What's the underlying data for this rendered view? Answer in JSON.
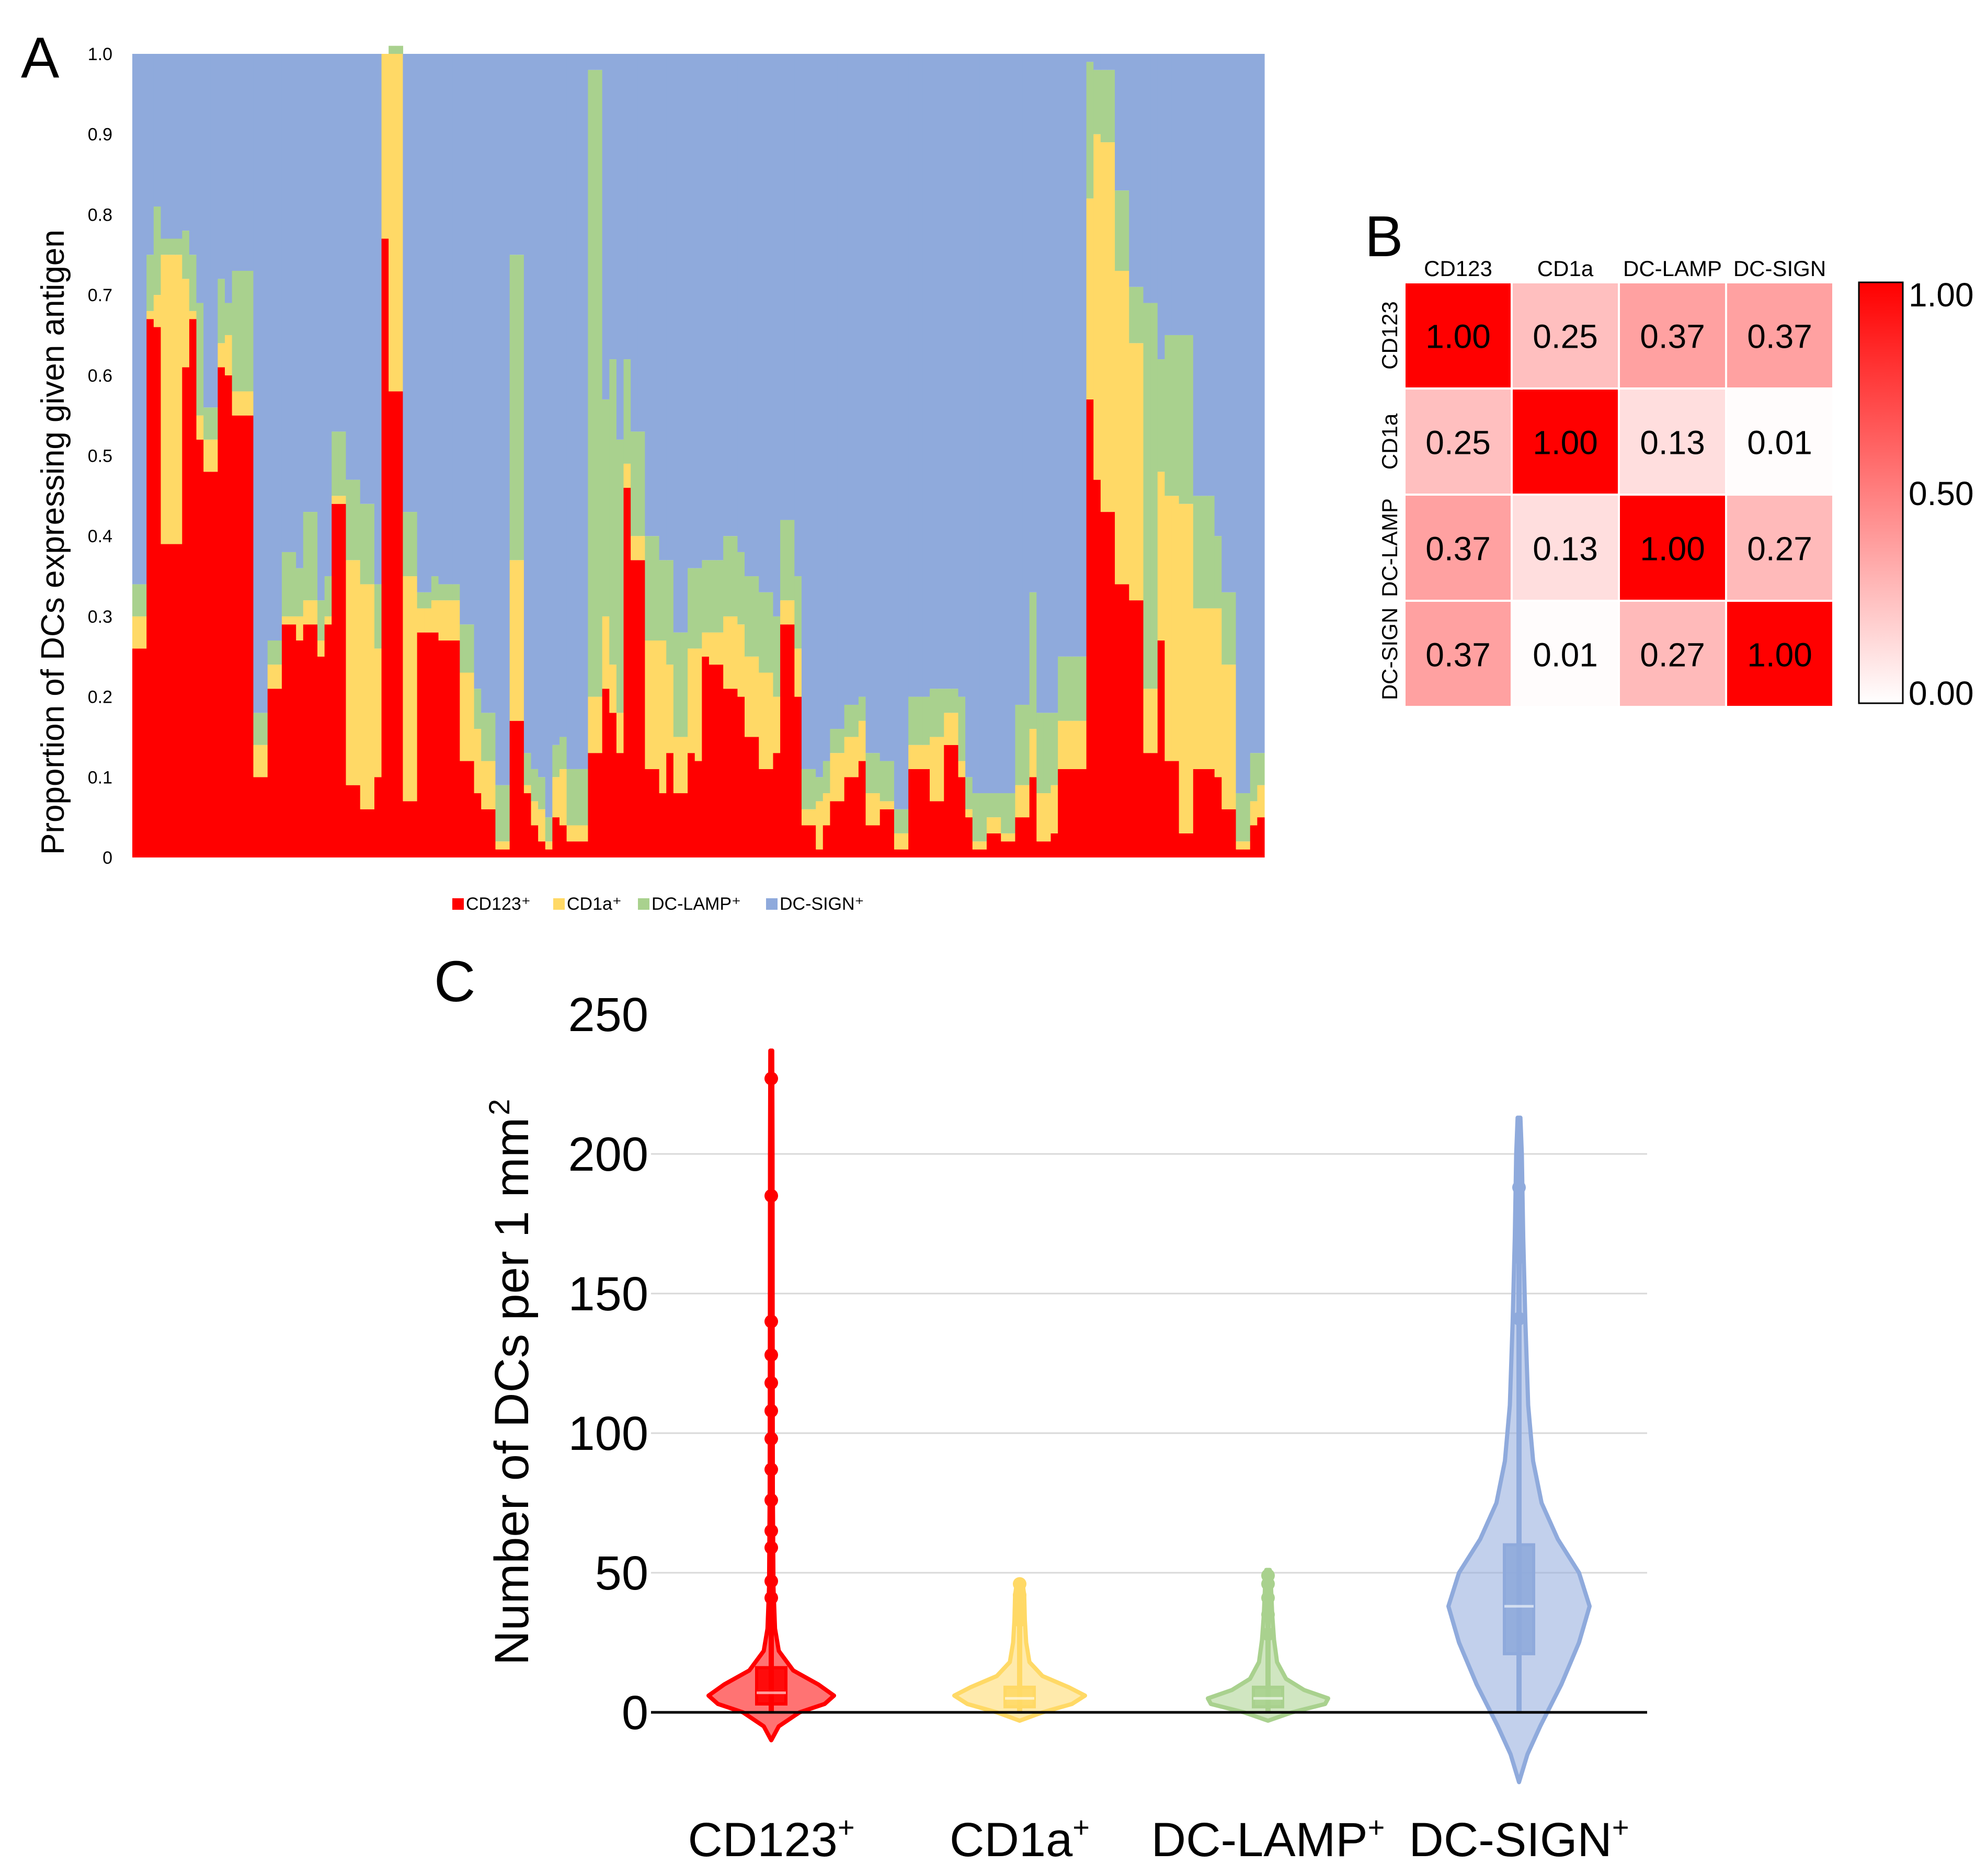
{
  "panels": {
    "a": "A",
    "b": "B",
    "c": "C"
  },
  "colors": {
    "cd123": "#ff0000",
    "cd1a": "#ffd966",
    "dclamp": "#a9d18e",
    "dcsign": "#8faadc"
  },
  "chart_data": [
    {
      "type": "stacked-bar",
      "title": "",
      "ylabel": "Proportion of DCs expressing given antigen",
      "ylim": [
        0,
        1.0
      ],
      "yticks": [
        "0",
        "0.1",
        "0.2",
        "0.3",
        "0.4",
        "0.5",
        "0.6",
        "0.7",
        "0.8",
        "0.9",
        "1.0"
      ],
      "legend": [
        "CD123⁺",
        "CD1a⁺",
        "DC-LAMP⁺",
        "DC-SIGN⁺"
      ],
      "legend_position": "bottom",
      "series": [
        {
          "name": "CD123⁺",
          "values": [
            0.26,
            0.26,
            0.67,
            0.66,
            0.39,
            0.39,
            0.39,
            0.61,
            0.67,
            0.52,
            0.48,
            0.48,
            0.61,
            0.6,
            0.55,
            0.55,
            0.55,
            0.1,
            0.1,
            0.21,
            0.21,
            0.29,
            0.29,
            0.27,
            0.29,
            0.29,
            0.25,
            0.29,
            0.44,
            0.44,
            0.09,
            0.09,
            0.06,
            0.06,
            0.1,
            0.77,
            0.58,
            0.58,
            0.07,
            0.07,
            0.28,
            0.28,
            0.28,
            0.27,
            0.27,
            0.27,
            0.12,
            0.12,
            0.08,
            0.06,
            0.06,
            0.01,
            0.01,
            0.17,
            0.17,
            0.08,
            0.04,
            0.02,
            0.01,
            0.05,
            0.04,
            0.02,
            0.02,
            0.02,
            0.13,
            0.13,
            0.21,
            0.18,
            0.13,
            0.46,
            0.37,
            0.37,
            0.11,
            0.11,
            0.08,
            0.13,
            0.08,
            0.08,
            0.13,
            0.12,
            0.25,
            0.24,
            0.24,
            0.21,
            0.21,
            0.2,
            0.15,
            0.15,
            0.11,
            0.11,
            0.13,
            0.29,
            0.29,
            0.2,
            0.04,
            0.04,
            0.01,
            0.04,
            0.07,
            0.07,
            0.1,
            0.1,
            0.12,
            0.04,
            0.04,
            0.06,
            0.06,
            0.01,
            0.01,
            0.11,
            0.11,
            0.11,
            0.07,
            0.07,
            0.14,
            0.14,
            0.1,
            0.05,
            0.01,
            0.01,
            0.03,
            0.03,
            0.02,
            0.02,
            0.05,
            0.05,
            0.1,
            0.02,
            0.02,
            0.03,
            0.11,
            0.11,
            0.11,
            0.11,
            0.57,
            0.47,
            0.43,
            0.43,
            0.34,
            0.34,
            0.32,
            0.32,
            0.13,
            0.13,
            0.27,
            0.12,
            0.12,
            0.03,
            0.03,
            0.11,
            0.11,
            0.11,
            0.1,
            0.06,
            0.06,
            0.01,
            0.01,
            0.04,
            0.05
          ],
          "color_key": "cd123"
        },
        {
          "name": "CD1a⁺",
          "values": [
            0.04,
            0.04,
            0.01,
            0.04,
            0.36,
            0.36,
            0.36,
            0.11,
            0.01,
            0.03,
            0.04,
            0.04,
            0.03,
            0.05,
            0.03,
            0.03,
            0.03,
            0.04,
            0.04,
            0.03,
            0.03,
            0.01,
            0.01,
            0.03,
            0.03,
            0.03,
            0.02,
            0.01,
            0.01,
            0.01,
            0.28,
            0.28,
            0.28,
            0.28,
            0.16,
            0.23,
            0.42,
            0.42,
            0.28,
            0.28,
            0.03,
            0.03,
            0.04,
            0.05,
            0.05,
            0.05,
            0.11,
            0.11,
            0.08,
            0.06,
            0.06,
            0.01,
            0.01,
            0.2,
            0.2,
            0.01,
            0.03,
            0.04,
            0.01,
            0.05,
            0.07,
            0.02,
            0.02,
            0.02,
            0.07,
            0.07,
            0.09,
            0.06,
            0.05,
            0.03,
            0.03,
            0.03,
            0.16,
            0.16,
            0.19,
            0.11,
            0.07,
            0.07,
            0.13,
            0.14,
            0.03,
            0.04,
            0.04,
            0.09,
            0.09,
            0.09,
            0.1,
            0.1,
            0.12,
            0.12,
            0.07,
            0.03,
            0.03,
            0.06,
            0.02,
            0.02,
            0.06,
            0.04,
            0.06,
            0.06,
            0.05,
            0.05,
            0.05,
            0.04,
            0.04,
            0.01,
            0.01,
            0.02,
            0.02,
            0.03,
            0.03,
            0.03,
            0.08,
            0.08,
            0.04,
            0.04,
            0.02,
            0.01,
            0.01,
            0.01,
            0.02,
            0.02,
            0.01,
            0.01,
            0.04,
            0.04,
            0.06,
            0.06,
            0.06,
            0.06,
            0.06,
            0.06,
            0.06,
            0.06,
            0.25,
            0.43,
            0.46,
            0.46,
            0.39,
            0.39,
            0.32,
            0.32,
            0.08,
            0.08,
            0.21,
            0.33,
            0.33,
            0.41,
            0.41,
            0.2,
            0.2,
            0.2,
            0.21,
            0.18,
            0.18,
            0.01,
            0.01,
            0.03,
            0.04
          ],
          "color_key": "cd1a"
        },
        {
          "name": "DC-LAMP⁺",
          "values": [
            0.04,
            0.04,
            0.07,
            0.11,
            0.02,
            0.02,
            0.02,
            0.06,
            0.07,
            0.14,
            0.04,
            0.04,
            0.08,
            0.04,
            0.15,
            0.15,
            0.15,
            0.04,
            0.04,
            0.03,
            0.03,
            0.08,
            0.08,
            0.06,
            0.11,
            0.11,
            0.05,
            0.05,
            0.08,
            0.08,
            0.1,
            0.1,
            0.1,
            0.1,
            0.08,
            0.0,
            0.01,
            0.01,
            0.08,
            0.08,
            0.02,
            0.02,
            0.03,
            0.02,
            0.02,
            0.02,
            0.06,
            0.06,
            0.05,
            0.06,
            0.06,
            0.07,
            0.07,
            0.38,
            0.38,
            0.04,
            0.04,
            0.04,
            0.03,
            0.04,
            0.04,
            0.07,
            0.07,
            0.07,
            0.78,
            0.78,
            0.27,
            0.38,
            0.34,
            0.13,
            0.13,
            0.13,
            0.13,
            0.13,
            0.1,
            0.13,
            0.13,
            0.13,
            0.1,
            0.1,
            0.09,
            0.09,
            0.09,
            0.1,
            0.1,
            0.09,
            0.1,
            0.1,
            0.1,
            0.1,
            0.1,
            0.1,
            0.1,
            0.09,
            0.05,
            0.05,
            0.03,
            0.04,
            0.03,
            0.03,
            0.04,
            0.04,
            0.03,
            0.05,
            0.05,
            0.05,
            0.05,
            0.03,
            0.03,
            0.06,
            0.06,
            0.06,
            0.06,
            0.06,
            0.03,
            0.03,
            0.08,
            0.04,
            0.06,
            0.06,
            0.03,
            0.03,
            0.05,
            0.05,
            0.1,
            0.1,
            0.17,
            0.1,
            0.1,
            0.09,
            0.08,
            0.08,
            0.08,
            0.08,
            0.17,
            0.08,
            0.09,
            0.09,
            0.1,
            0.1,
            0.07,
            0.07,
            0.48,
            0.48,
            0.14,
            0.2,
            0.2,
            0.21,
            0.21,
            0.14,
            0.14,
            0.14,
            0.09,
            0.09,
            0.09,
            0.06,
            0.06,
            0.06,
            0.04
          ],
          "color_key": "dclamp"
        },
        {
          "name": "DC-SIGN⁺",
          "values": [
            0.66,
            0.66,
            0.25,
            0.19,
            0.23,
            0.23,
            0.23,
            0.22,
            0.25,
            0.31,
            0.44,
            0.44,
            0.28,
            0.31,
            0.27,
            0.27,
            0.27,
            0.82,
            0.82,
            0.73,
            0.73,
            0.62,
            0.62,
            0.64,
            0.57,
            0.57,
            0.68,
            0.65,
            0.47,
            0.47,
            0.53,
            0.53,
            0.56,
            0.56,
            0.66,
            0.0,
            0.0,
            0.0,
            0.57,
            0.57,
            0.67,
            0.67,
            0.65,
            0.66,
            0.66,
            0.66,
            0.71,
            0.71,
            0.79,
            0.82,
            0.82,
            0.91,
            0.91,
            0.25,
            0.25,
            0.87,
            0.89,
            0.9,
            0.95,
            0.86,
            0.85,
            0.89,
            0.89,
            0.89,
            0.02,
            0.02,
            0.43,
            0.38,
            0.48,
            0.38,
            0.47,
            0.47,
            0.6,
            0.6,
            0.63,
            0.63,
            0.72,
            0.72,
            0.64,
            0.64,
            0.63,
            0.63,
            0.63,
            0.6,
            0.6,
            0.62,
            0.65,
            0.65,
            0.67,
            0.67,
            0.7,
            0.58,
            0.58,
            0.65,
            0.89,
            0.89,
            0.9,
            0.88,
            0.84,
            0.84,
            0.81,
            0.81,
            0.8,
            0.87,
            0.87,
            0.88,
            0.88,
            0.94,
            0.94,
            0.8,
            0.8,
            0.8,
            0.79,
            0.79,
            0.79,
            0.79,
            0.8,
            0.9,
            0.92,
            0.92,
            0.92,
            0.92,
            0.92,
            0.92,
            0.81,
            0.81,
            0.67,
            0.82,
            0.82,
            0.82,
            0.75,
            0.75,
            0.75,
            0.75,
            0.01,
            0.02,
            0.02,
            0.02,
            0.17,
            0.17,
            0.29,
            0.29,
            0.31,
            0.31,
            0.38,
            0.35,
            0.35,
            0.35,
            0.35,
            0.55,
            0.55,
            0.55,
            0.6,
            0.67,
            0.67,
            0.92,
            0.92,
            0.87,
            0.87
          ],
          "color_key": "dcsign"
        }
      ]
    },
    {
      "type": "heatmap",
      "row_labels": [
        "CD123",
        "CD1a",
        "DC-LAMP",
        "DC-SIGN"
      ],
      "col_labels": [
        "CD123",
        "CD1a",
        "DC-LAMP",
        "DC-SIGN"
      ],
      "values": [
        [
          1.0,
          0.25,
          0.37,
          0.37
        ],
        [
          0.25,
          1.0,
          0.13,
          0.01
        ],
        [
          0.37,
          0.13,
          1.0,
          0.27
        ],
        [
          0.37,
          0.01,
          0.27,
          1.0
        ]
      ],
      "value_labels": [
        [
          "1.00",
          "0.25",
          "0.37",
          "0.37"
        ],
        [
          "0.25",
          "1.00",
          "0.13",
          "0.01"
        ],
        [
          "0.37",
          "0.13",
          "1.00",
          "0.27"
        ],
        [
          "0.37",
          "0.01",
          "0.27",
          "1.00"
        ]
      ],
      "colorbar": {
        "range": [
          0.0,
          1.0
        ],
        "ticks": [
          "1.00",
          "0.50",
          "0.00"
        ],
        "low_color": "#ffffff",
        "high_color": "#ff0000"
      }
    },
    {
      "type": "violin",
      "ylabel": "Number of DCs per 1 mm",
      "ylabel_sup": "2",
      "ylim": [
        0,
        250
      ],
      "yticks": [
        "0",
        "50",
        "100",
        "150",
        "200",
        "250"
      ],
      "categories": [
        {
          "label": "CD123",
          "sup": "+",
          "color_key": "cd123",
          "min": -10,
          "max": 237,
          "q1": 3,
          "median": 7,
          "q3": 16,
          "outliers": [
            227,
            185,
            140,
            128,
            118,
            108,
            98,
            87,
            76,
            65,
            59,
            47,
            41
          ]
        },
        {
          "label": "CD1a",
          "sup": "+",
          "color_key": "cd1a",
          "min": -3,
          "max": 47,
          "q1": 2,
          "median": 5,
          "q3": 9,
          "outliers": [
            46,
            42,
            37,
            33
          ]
        },
        {
          "label": "DC-LAMP",
          "sup": "+",
          "color_key": "dclamp",
          "min": -3,
          "max": 51,
          "q1": 2,
          "median": 5,
          "q3": 9,
          "outliers": [
            49,
            46,
            41,
            35,
            28
          ]
        },
        {
          "label": "DC-SIGN",
          "sup": "+",
          "color_key": "dcsign",
          "min": -25,
          "max": 213,
          "q1": 21,
          "median": 38,
          "q3": 60,
          "outliers": [
            188,
            163,
            141
          ]
        }
      ]
    }
  ]
}
